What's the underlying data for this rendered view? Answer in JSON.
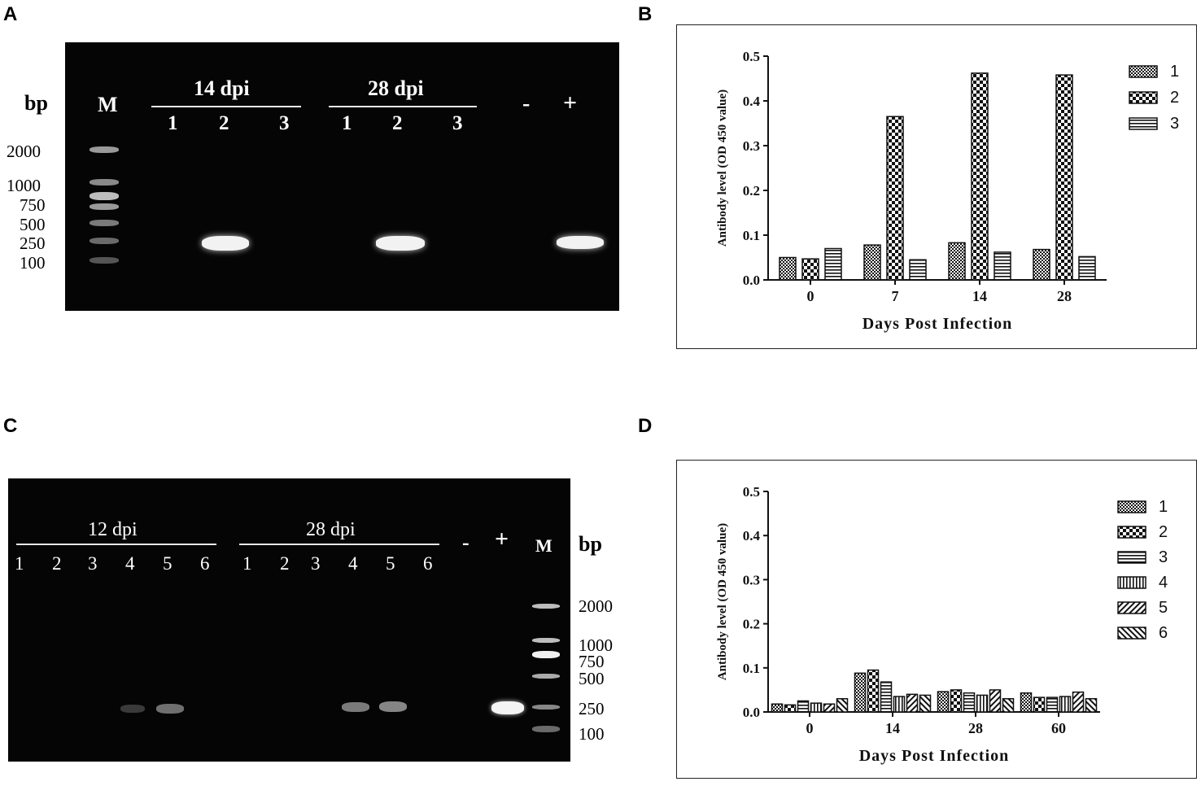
{
  "panels": {
    "a": {
      "letter": "A",
      "bp_label": "bp",
      "marker_label": "M",
      "group1": {
        "label": "14 dpi",
        "lanes": [
          "1",
          "2",
          "3"
        ]
      },
      "group2": {
        "label": "28 dpi",
        "lanes": [
          "1",
          "2",
          "3"
        ]
      },
      "neg_label": "-",
      "pos_label": "+",
      "ladder_sizes": [
        "2000",
        "1000",
        "750",
        "500",
        "250",
        "100"
      ]
    },
    "b": {
      "letter": "B"
    },
    "c": {
      "letter": "C",
      "bp_label": "bp",
      "marker_label": "M",
      "group1": {
        "label": "12 dpi",
        "lanes": [
          "1",
          "2",
          "3",
          "4",
          "5",
          "6"
        ]
      },
      "group2": {
        "label": "28 dpi",
        "lanes": [
          "1",
          "2",
          "3",
          "4",
          "5",
          "6"
        ]
      },
      "neg_label": "-",
      "pos_label": "+",
      "ladder_sizes": [
        "2000",
        "1000",
        "750",
        "500",
        "250",
        "100"
      ]
    },
    "d": {
      "letter": "D"
    }
  },
  "chart_data": [
    {
      "panel": "B",
      "type": "bar",
      "categories": [
        "0",
        "7",
        "14",
        "28"
      ],
      "series": [
        {
          "name": "1",
          "values": [
            0.05,
            0.078,
            0.083,
            0.068
          ]
        },
        {
          "name": "2",
          "values": [
            0.047,
            0.365,
            0.462,
            0.458
          ]
        },
        {
          "name": "3",
          "values": [
            0.07,
            0.045,
            0.062,
            0.052
          ]
        }
      ],
      "xlabel": "Days Post Infection",
      "ylabel": "Antibody level (OD 450 value)",
      "ylim": [
        0,
        0.5
      ],
      "yticks": [
        "0.0",
        "0.1",
        "0.2",
        "0.3",
        "0.4",
        "0.5"
      ],
      "legend": "right"
    },
    {
      "panel": "D",
      "type": "bar",
      "categories": [
        "0",
        "14",
        "28",
        "60"
      ],
      "series": [
        {
          "name": "1",
          "values": [
            0.018,
            0.088,
            0.046,
            0.043
          ]
        },
        {
          "name": "2",
          "values": [
            0.016,
            0.095,
            0.05,
            0.033
          ]
        },
        {
          "name": "3",
          "values": [
            0.025,
            0.068,
            0.043,
            0.033
          ]
        },
        {
          "name": "4",
          "values": [
            0.02,
            0.035,
            0.038,
            0.035
          ]
        },
        {
          "name": "5",
          "values": [
            0.018,
            0.04,
            0.05,
            0.045
          ]
        },
        {
          "name": "6",
          "values": [
            0.03,
            0.038,
            0.03,
            0.03
          ]
        }
      ],
      "xlabel": "Days Post Infection",
      "ylabel": "Antibody level (OD 450 value)",
      "ylim": [
        0,
        0.5
      ],
      "yticks": [
        "0.0",
        "0.1",
        "0.2",
        "0.3",
        "0.4",
        "0.5"
      ],
      "legend": "right"
    }
  ]
}
